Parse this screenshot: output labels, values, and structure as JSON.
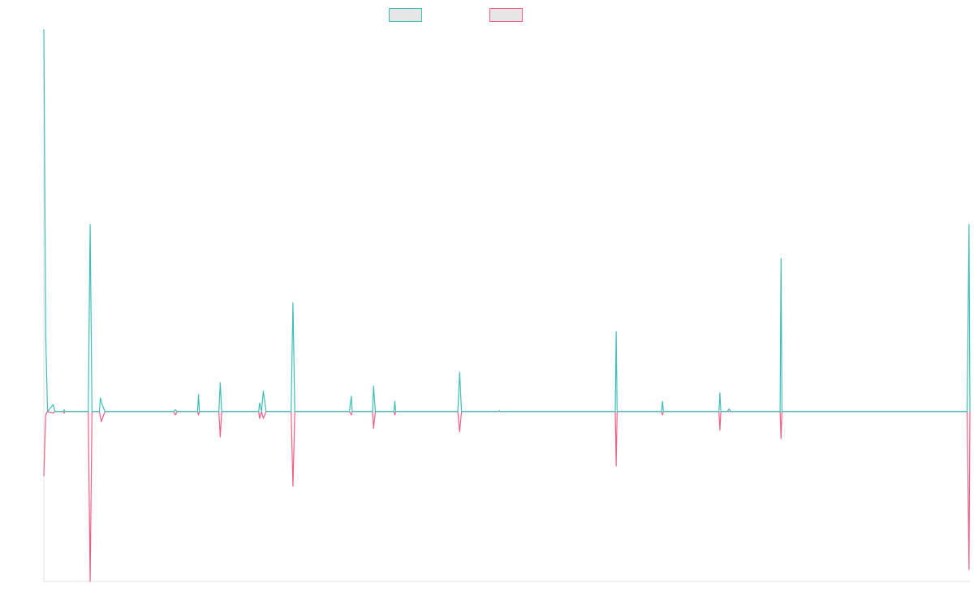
{
  "chart_data": {
    "type": "line",
    "title": "",
    "xlabel": "",
    "ylabel": "",
    "grid": false,
    "legend": {
      "placement": "top-center",
      "entries": [
        {
          "name": "",
          "color": "#3dbfb8",
          "fill": "#e6e6e6"
        },
        {
          "name": "",
          "color": "#ef5f84",
          "fill": "#e6e6e6"
        }
      ]
    },
    "x_range": [
      0,
      1000
    ],
    "y_range": [
      -10,
      22.5
    ],
    "series": [
      {
        "name": "",
        "color": "#3dbfb8",
        "points": [
          [
            0,
            22.5
          ],
          [
            2,
            4.5
          ],
          [
            4,
            0
          ],
          [
            10,
            0.4
          ],
          [
            12,
            0
          ],
          [
            21,
            0
          ],
          [
            22,
            0.1
          ],
          [
            23,
            0
          ],
          [
            48,
            0
          ],
          [
            50,
            11
          ],
          [
            52,
            0
          ],
          [
            60,
            0
          ],
          [
            61,
            0.8
          ],
          [
            63,
            0.4
          ],
          [
            66,
            0
          ],
          [
            140,
            0
          ],
          [
            142,
            0.1
          ],
          [
            144,
            0
          ],
          [
            166,
            0
          ],
          [
            167,
            1
          ],
          [
            168,
            0
          ],
          [
            189,
            0
          ],
          [
            190.5,
            1.7
          ],
          [
            192,
            0
          ],
          [
            232,
            0
          ],
          [
            233,
            0.5
          ],
          [
            235,
            0
          ],
          [
            237,
            1.2
          ],
          [
            240,
            0
          ],
          [
            267,
            0
          ],
          [
            269,
            6.4
          ],
          [
            271,
            0
          ],
          [
            330,
            0
          ],
          [
            332,
            0.9
          ],
          [
            333,
            0
          ],
          [
            355,
            0
          ],
          [
            356,
            1.5
          ],
          [
            358,
            0
          ],
          [
            362,
            0
          ],
          [
            378,
            0
          ],
          [
            379,
            0.6
          ],
          [
            380,
            0
          ],
          [
            447,
            0
          ],
          [
            449,
            2.3
          ],
          [
            451,
            0
          ],
          [
            491,
            0
          ],
          [
            492,
            0.05
          ],
          [
            493,
            0
          ],
          [
            617,
            0
          ],
          [
            618,
            4.7
          ],
          [
            619,
            0
          ],
          [
            667,
            0
          ],
          [
            668,
            0.6
          ],
          [
            669,
            0
          ],
          [
            729,
            0
          ],
          [
            730,
            1.1
          ],
          [
            731,
            0
          ],
          [
            738,
            0
          ],
          [
            740,
            0.15
          ],
          [
            742,
            0
          ],
          [
            795,
            0
          ],
          [
            796,
            9
          ],
          [
            797,
            0
          ],
          [
            997,
            0
          ],
          [
            999,
            11
          ],
          [
            1000,
            0
          ]
        ]
      },
      {
        "name": "",
        "color": "#ef5f84",
        "points": [
          [
            0,
            -3.8
          ],
          [
            2,
            -0.2
          ],
          [
            4,
            0
          ],
          [
            10,
            -0.1
          ],
          [
            12,
            0
          ],
          [
            21,
            0
          ],
          [
            22,
            -0.1
          ],
          [
            23,
            0
          ],
          [
            48,
            0
          ],
          [
            50,
            -10
          ],
          [
            52,
            0
          ],
          [
            60,
            0
          ],
          [
            62,
            -0.6
          ],
          [
            66,
            0
          ],
          [
            140,
            0
          ],
          [
            142,
            -0.2
          ],
          [
            144,
            0
          ],
          [
            166,
            0
          ],
          [
            167,
            -0.2
          ],
          [
            168,
            0
          ],
          [
            189,
            0
          ],
          [
            190.5,
            -1.5
          ],
          [
            192,
            0
          ],
          [
            232,
            0
          ],
          [
            233,
            -0.4
          ],
          [
            235,
            0
          ],
          [
            237,
            -0.4
          ],
          [
            240,
            0
          ],
          [
            267,
            0
          ],
          [
            269,
            -4.4
          ],
          [
            271,
            0
          ],
          [
            330,
            0
          ],
          [
            332,
            -0.2
          ],
          [
            333,
            0
          ],
          [
            355,
            0
          ],
          [
            356,
            -1
          ],
          [
            358,
            0
          ],
          [
            362,
            0
          ],
          [
            378,
            0
          ],
          [
            379,
            -0.2
          ],
          [
            380,
            0
          ],
          [
            447,
            0
          ],
          [
            449,
            -1.2
          ],
          [
            451,
            0
          ],
          [
            617,
            0
          ],
          [
            618,
            -3.2
          ],
          [
            619,
            0
          ],
          [
            667,
            0
          ],
          [
            668,
            -0.2
          ],
          [
            669,
            0
          ],
          [
            729,
            0
          ],
          [
            730,
            -1.1
          ],
          [
            731,
            0
          ],
          [
            795,
            0
          ],
          [
            796,
            -1.6
          ],
          [
            797,
            0
          ],
          [
            997,
            0
          ],
          [
            999,
            -9.3
          ],
          [
            1000,
            0
          ]
        ]
      }
    ]
  }
}
